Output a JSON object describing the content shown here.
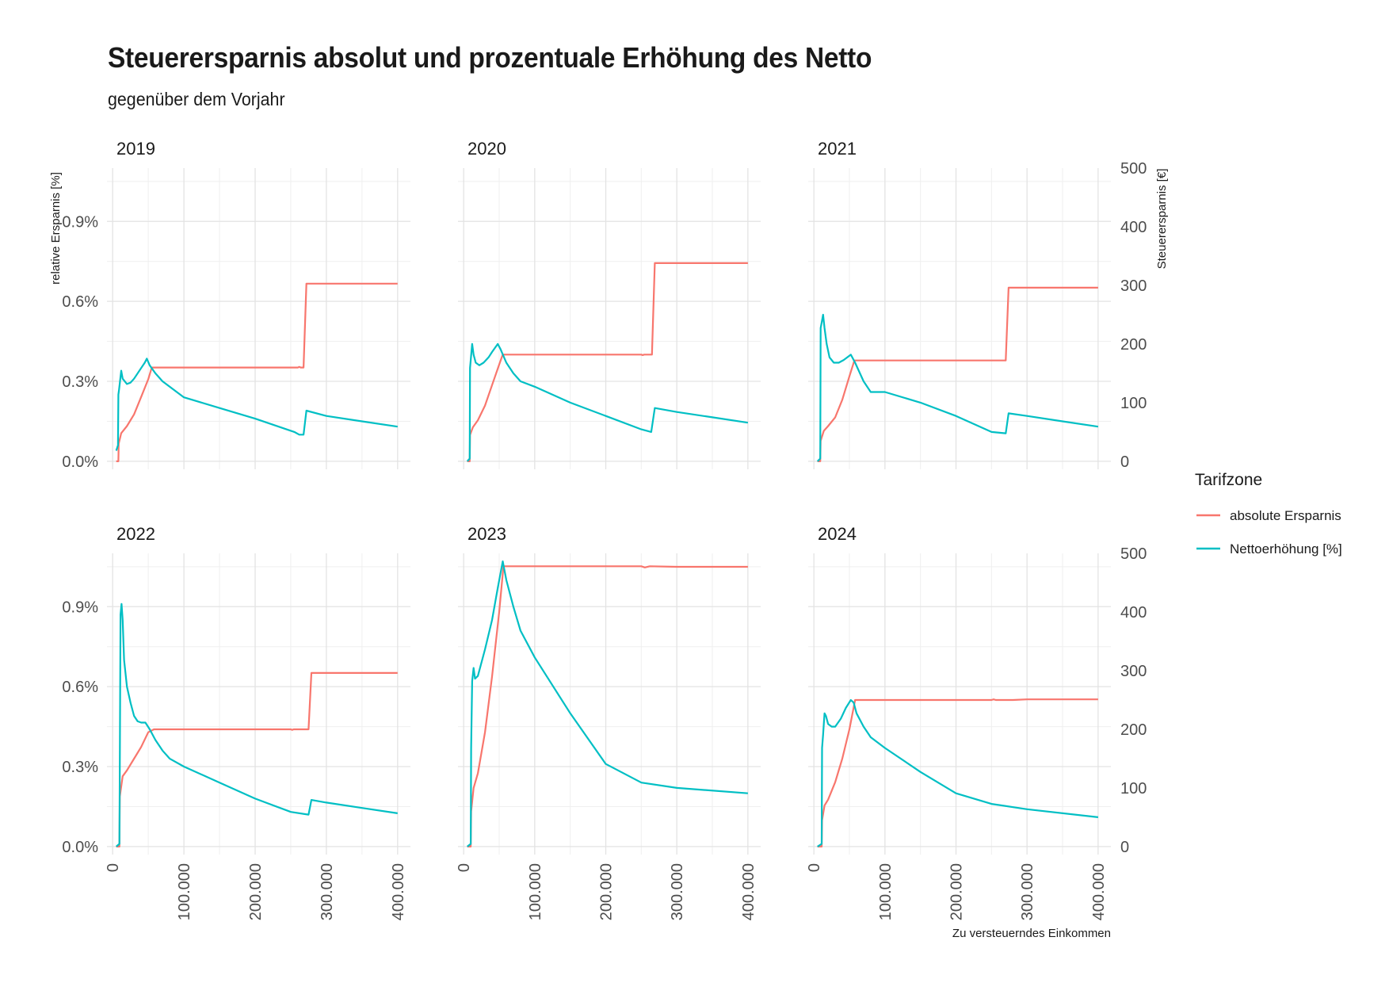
{
  "title": "Steuerersparnis absolut und prozentuale Erhöhung des Netto",
  "subtitle": "gegenüber dem Vorjahr",
  "chart_data": {
    "type": "line",
    "facets_layout": "2 rows x 3 columns, shared axes",
    "xlabel": "Zu versteuerndes Einkommen",
    "ylabel_left": "relative Ersparnis [%]",
    "ylabel_right": "Steuerersparnis [€]",
    "x_ticks": [
      "0",
      "100.000",
      "200.000",
      "300.000",
      "400.000"
    ],
    "x_tick_values": [
      0,
      100000,
      200000,
      300000,
      400000
    ],
    "xlim": [
      -8000,
      418000
    ],
    "y_left_ticks": [
      "0.0%",
      "0.3%",
      "0.6%",
      "0.9%"
    ],
    "y_left_tick_values": [
      0,
      0.3,
      0.6,
      0.9
    ],
    "y_right_ticks": [
      "0",
      "100",
      "200",
      "300",
      "400",
      "500"
    ],
    "y_right_tick_values": [
      0,
      100,
      200,
      300,
      400,
      500
    ],
    "y_left_lim": [
      -0.03,
      1.1
    ],
    "y_right_lim": [
      -13.6,
      500
    ],
    "grid": true,
    "legend": {
      "title": "Tarifzone",
      "position": "right",
      "entries": [
        {
          "label": "absolute Ersparnis",
          "color": "#F8766D"
        },
        {
          "label": "Nettoerhöhung [%]",
          "color": "#00BFC4"
        }
      ]
    },
    "panels": [
      {
        "label": "2019",
        "absolute_savings_eur": [
          [
            5000,
            0
          ],
          [
            8000,
            0
          ],
          [
            8500,
            30
          ],
          [
            12000,
            48
          ],
          [
            20000,
            60
          ],
          [
            30000,
            80
          ],
          [
            40000,
            110
          ],
          [
            50000,
            140
          ],
          [
            55000,
            160
          ],
          [
            260000,
            160
          ],
          [
            262000,
            161
          ],
          [
            264000,
            160
          ],
          [
            268000,
            160
          ],
          [
            272000,
            303
          ],
          [
            400000,
            303
          ]
        ],
        "net_increase_pct": [
          [
            5000,
            0.04
          ],
          [
            7500,
            0.06
          ],
          [
            8000,
            0.25
          ],
          [
            9000,
            0.27
          ],
          [
            12000,
            0.34
          ],
          [
            14000,
            0.31
          ],
          [
            20000,
            0.29
          ],
          [
            25000,
            0.295
          ],
          [
            30000,
            0.31
          ],
          [
            40000,
            0.35
          ],
          [
            45000,
            0.37
          ],
          [
            48000,
            0.385
          ],
          [
            52000,
            0.36
          ],
          [
            60000,
            0.33
          ],
          [
            70000,
            0.3
          ],
          [
            80000,
            0.28
          ],
          [
            100000,
            0.24
          ],
          [
            150000,
            0.2
          ],
          [
            200000,
            0.16
          ],
          [
            255000,
            0.11
          ],
          [
            262000,
            0.1
          ],
          [
            268000,
            0.1
          ],
          [
            272000,
            0.19
          ],
          [
            300000,
            0.17
          ],
          [
            350000,
            0.15
          ],
          [
            400000,
            0.13
          ]
        ]
      },
      {
        "label": "2020",
        "absolute_savings_eur": [
          [
            5000,
            0
          ],
          [
            8500,
            0
          ],
          [
            9000,
            45
          ],
          [
            13000,
            58
          ],
          [
            20000,
            70
          ],
          [
            30000,
            95
          ],
          [
            40000,
            130
          ],
          [
            50000,
            165
          ],
          [
            55000,
            182
          ],
          [
            250000,
            182
          ],
          [
            252000,
            181
          ],
          [
            254000,
            182
          ],
          [
            265000,
            182
          ],
          [
            269000,
            338
          ],
          [
            400000,
            338
          ]
        ],
        "net_increase_pct": [
          [
            5000,
            0.0
          ],
          [
            8500,
            0.01
          ],
          [
            9000,
            0.35
          ],
          [
            10000,
            0.38
          ],
          [
            12000,
            0.44
          ],
          [
            14000,
            0.4
          ],
          [
            17000,
            0.37
          ],
          [
            22000,
            0.36
          ],
          [
            28000,
            0.37
          ],
          [
            35000,
            0.39
          ],
          [
            40000,
            0.41
          ],
          [
            48000,
            0.44
          ],
          [
            52000,
            0.42
          ],
          [
            60000,
            0.37
          ],
          [
            70000,
            0.33
          ],
          [
            80000,
            0.3
          ],
          [
            100000,
            0.28
          ],
          [
            150000,
            0.22
          ],
          [
            200000,
            0.17
          ],
          [
            250000,
            0.12
          ],
          [
            264000,
            0.11
          ],
          [
            269000,
            0.2
          ],
          [
            300000,
            0.185
          ],
          [
            350000,
            0.165
          ],
          [
            400000,
            0.145
          ]
        ]
      },
      {
        "label": "2021",
        "absolute_savings_eur": [
          [
            5000,
            0
          ],
          [
            9000,
            0
          ],
          [
            9500,
            35
          ],
          [
            14000,
            52
          ],
          [
            20000,
            60
          ],
          [
            30000,
            75
          ],
          [
            40000,
            105
          ],
          [
            50000,
            145
          ],
          [
            57000,
            172
          ],
          [
            270000,
            172
          ],
          [
            274000,
            296
          ],
          [
            400000,
            296
          ]
        ],
        "net_increase_pct": [
          [
            5000,
            0.0
          ],
          [
            9000,
            0.01
          ],
          [
            9500,
            0.5
          ],
          [
            11000,
            0.52
          ],
          [
            13000,
            0.55
          ],
          [
            15000,
            0.5
          ],
          [
            18000,
            0.44
          ],
          [
            22000,
            0.39
          ],
          [
            28000,
            0.37
          ],
          [
            35000,
            0.37
          ],
          [
            42000,
            0.38
          ],
          [
            52000,
            0.4
          ],
          [
            58000,
            0.37
          ],
          [
            70000,
            0.3
          ],
          [
            80000,
            0.26
          ],
          [
            100000,
            0.26
          ],
          [
            150000,
            0.22
          ],
          [
            200000,
            0.17
          ],
          [
            250000,
            0.11
          ],
          [
            270000,
            0.105
          ],
          [
            274000,
            0.18
          ],
          [
            300000,
            0.17
          ],
          [
            350000,
            0.15
          ],
          [
            400000,
            0.13
          ]
        ]
      },
      {
        "label": "2022",
        "absolute_savings_eur": [
          [
            5000,
            0
          ],
          [
            9500,
            0
          ],
          [
            10000,
            85
          ],
          [
            14000,
            120
          ],
          [
            20000,
            130
          ],
          [
            30000,
            150
          ],
          [
            40000,
            170
          ],
          [
            50000,
            195
          ],
          [
            58000,
            200
          ],
          [
            250000,
            200
          ],
          [
            252000,
            199
          ],
          [
            254000,
            200
          ],
          [
            275000,
            200
          ],
          [
            279000,
            296
          ],
          [
            400000,
            296
          ]
        ],
        "net_increase_pct": [
          [
            5000,
            0.0
          ],
          [
            9500,
            0.01
          ],
          [
            10000,
            0.3
          ],
          [
            11000,
            0.87
          ],
          [
            12500,
            0.91
          ],
          [
            14000,
            0.85
          ],
          [
            16000,
            0.7
          ],
          [
            20000,
            0.6
          ],
          [
            25000,
            0.54
          ],
          [
            30000,
            0.49
          ],
          [
            35000,
            0.47
          ],
          [
            40000,
            0.465
          ],
          [
            46000,
            0.465
          ],
          [
            52000,
            0.44
          ],
          [
            60000,
            0.4
          ],
          [
            70000,
            0.36
          ],
          [
            80000,
            0.33
          ],
          [
            100000,
            0.3
          ],
          [
            150000,
            0.24
          ],
          [
            200000,
            0.18
          ],
          [
            250000,
            0.13
          ],
          [
            275000,
            0.12
          ],
          [
            279000,
            0.175
          ],
          [
            300000,
            0.165
          ],
          [
            350000,
            0.145
          ],
          [
            400000,
            0.125
          ]
        ]
      },
      {
        "label": "2023",
        "absolute_savings_eur": [
          [
            5000,
            0
          ],
          [
            10000,
            0
          ],
          [
            10500,
            60
          ],
          [
            14000,
            100
          ],
          [
            20000,
            125
          ],
          [
            30000,
            195
          ],
          [
            40000,
            290
          ],
          [
            50000,
            400
          ],
          [
            56000,
            478
          ],
          [
            250000,
            478
          ],
          [
            255000,
            476
          ],
          [
            262000,
            478
          ],
          [
            300000,
            477
          ],
          [
            400000,
            477
          ]
        ],
        "net_increase_pct": [
          [
            5000,
            0.0
          ],
          [
            10000,
            0.01
          ],
          [
            10500,
            0.37
          ],
          [
            12000,
            0.62
          ],
          [
            14000,
            0.67
          ],
          [
            16000,
            0.63
          ],
          [
            20000,
            0.64
          ],
          [
            30000,
            0.74
          ],
          [
            40000,
            0.85
          ],
          [
            48000,
            0.97
          ],
          [
            55000,
            1.07
          ],
          [
            60000,
            1.0
          ],
          [
            70000,
            0.9
          ],
          [
            80000,
            0.81
          ],
          [
            100000,
            0.71
          ],
          [
            150000,
            0.5
          ],
          [
            200000,
            0.31
          ],
          [
            250000,
            0.24
          ],
          [
            300000,
            0.22
          ],
          [
            400000,
            0.2
          ]
        ]
      },
      {
        "label": "2024",
        "absolute_savings_eur": [
          [
            5000,
            0
          ],
          [
            11000,
            0
          ],
          [
            11500,
            45
          ],
          [
            15000,
            70
          ],
          [
            20000,
            80
          ],
          [
            30000,
            110
          ],
          [
            40000,
            150
          ],
          [
            50000,
            200
          ],
          [
            58000,
            250
          ],
          [
            250000,
            250
          ],
          [
            253000,
            251
          ],
          [
            256000,
            250
          ],
          [
            280000,
            250
          ],
          [
            300000,
            251
          ],
          [
            400000,
            251
          ]
        ],
        "net_increase_pct": [
          [
            5000,
            0.0
          ],
          [
            11000,
            0.01
          ],
          [
            11500,
            0.37
          ],
          [
            13000,
            0.42
          ],
          [
            15000,
            0.5
          ],
          [
            17000,
            0.49
          ],
          [
            20000,
            0.46
          ],
          [
            25000,
            0.45
          ],
          [
            30000,
            0.45
          ],
          [
            38000,
            0.48
          ],
          [
            45000,
            0.52
          ],
          [
            52000,
            0.55
          ],
          [
            56000,
            0.54
          ],
          [
            60000,
            0.5
          ],
          [
            70000,
            0.45
          ],
          [
            80000,
            0.41
          ],
          [
            100000,
            0.37
          ],
          [
            150000,
            0.28
          ],
          [
            200000,
            0.2
          ],
          [
            250000,
            0.16
          ],
          [
            300000,
            0.14
          ],
          [
            400000,
            0.11
          ]
        ]
      }
    ]
  }
}
